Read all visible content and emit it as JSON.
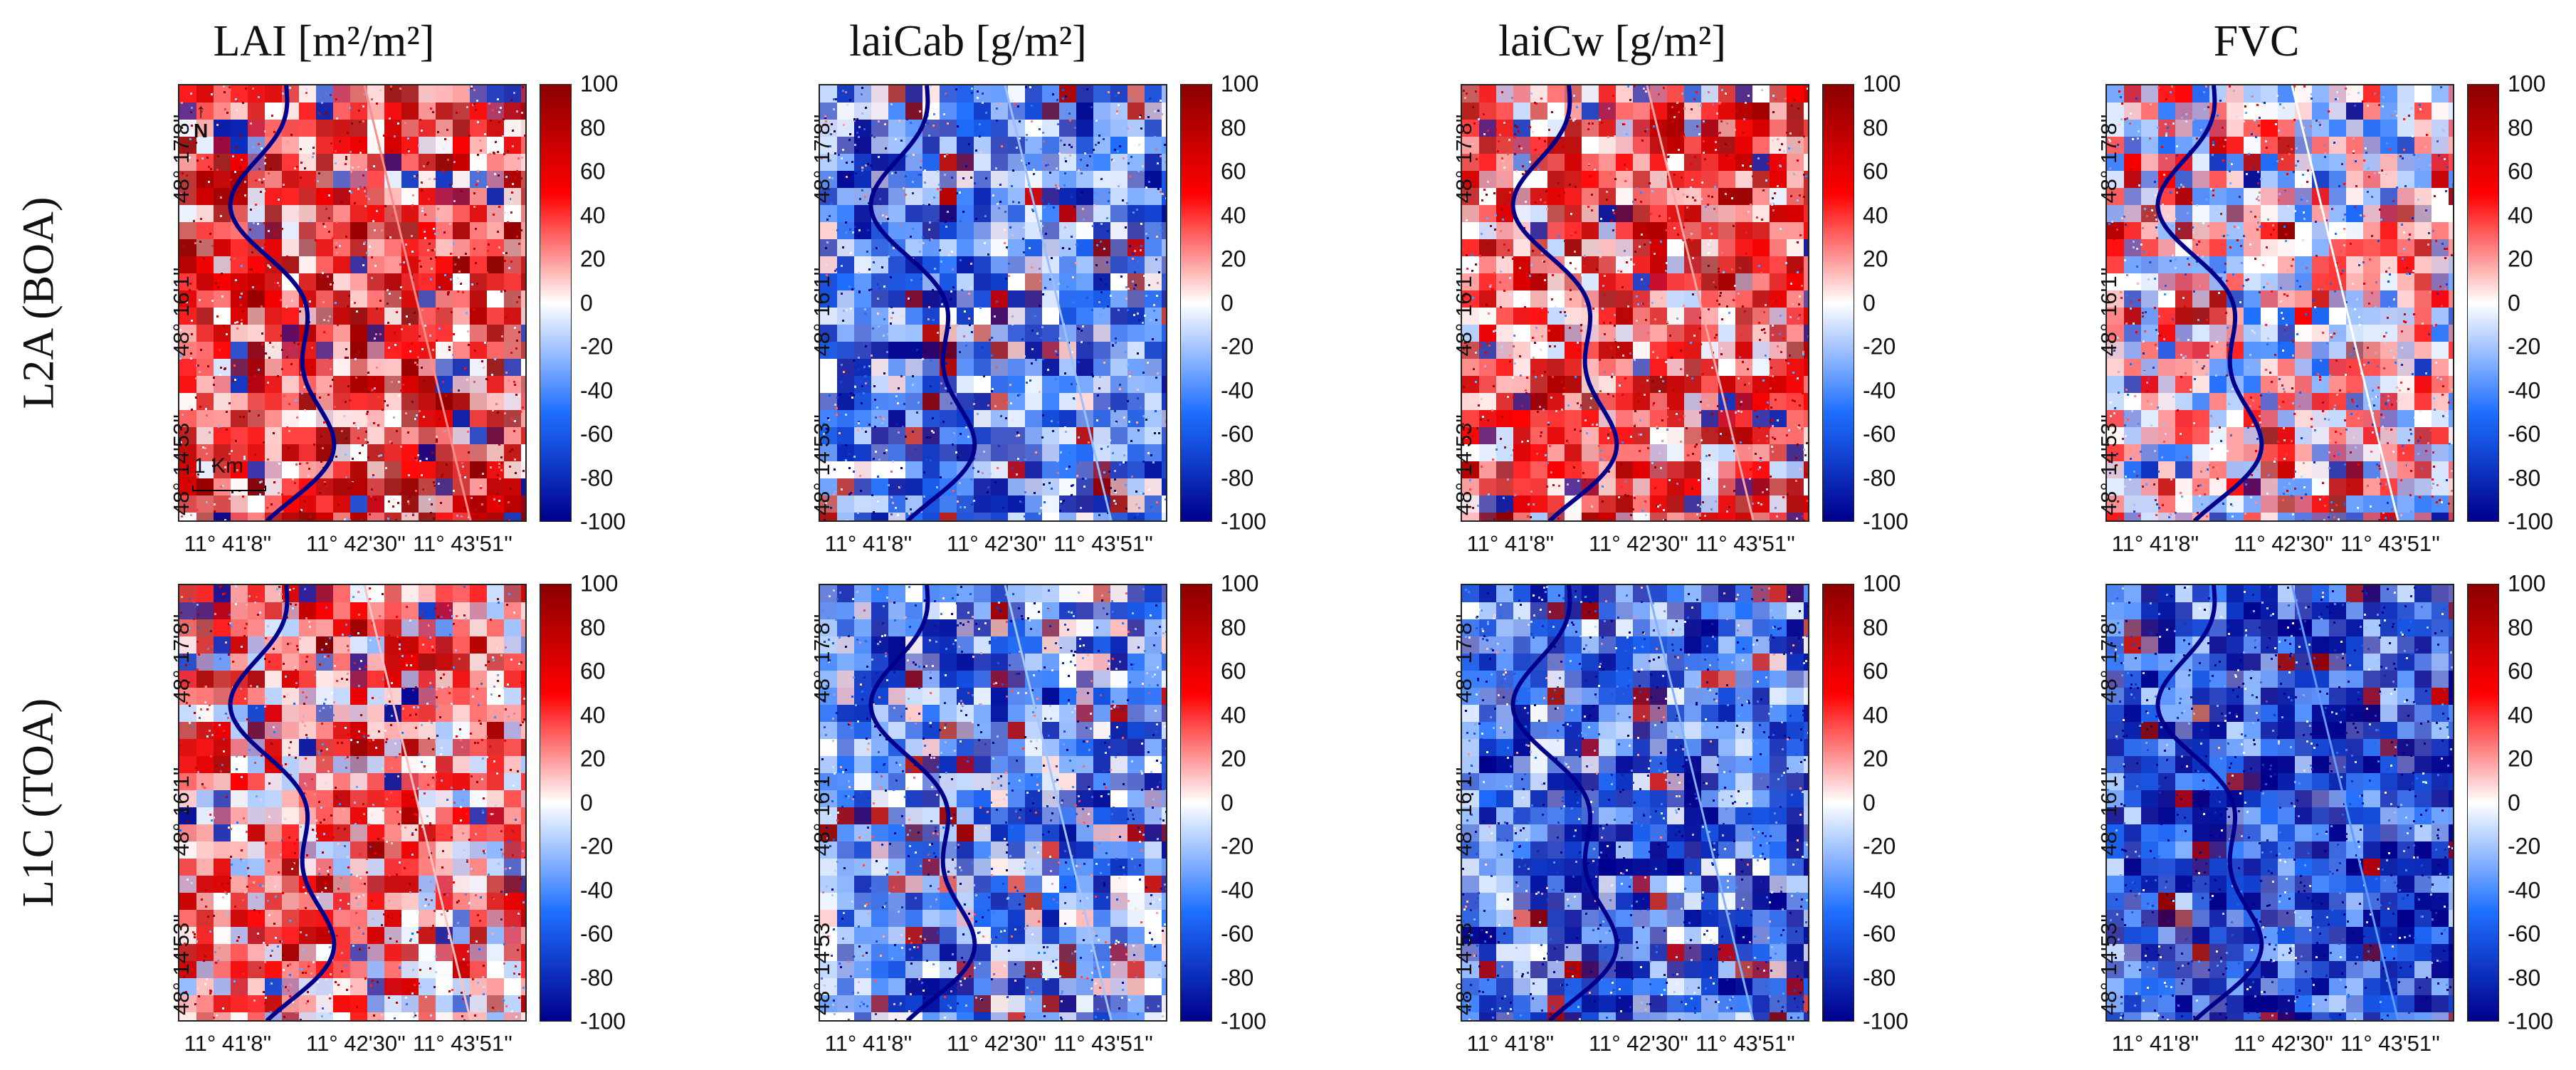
{
  "columns": [
    {
      "title": "LAI [m²/m²]"
    },
    {
      "title": "laiCab [g/m²]"
    },
    {
      "title": "laiCw [g/m²]"
    },
    {
      "title": "FVC"
    }
  ],
  "rows": [
    {
      "title": "L2A (BOA)"
    },
    {
      "title": "L1C (TOA)"
    }
  ],
  "axes": {
    "y_ticks": [
      "48° 17'8''",
      "48° 16'1''",
      "48° 14'53''"
    ],
    "x_ticks": [
      "11° 41'8''",
      "11° 42'30''",
      "11° 43'51''"
    ]
  },
  "colorbar": {
    "ticks": [
      "100",
      "80",
      "60",
      "40",
      "20",
      "0",
      "-20",
      "-40",
      "-60",
      "-80",
      "-100"
    ],
    "min": -100,
    "max": 100,
    "colors": {
      "low": "#00008b",
      "mid": "#ffffff",
      "high": "#8b0000",
      "red": "#ff0000",
      "blue": "#1e6fff"
    }
  },
  "map_annotations": {
    "north_label": "N",
    "scale_label": "1 Km"
  },
  "panel_bias": {
    "r0c0": 0.45,
    "r0c1": -0.45,
    "r0c2": 0.35,
    "r0c3": 0.0,
    "r1c0": 0.25,
    "r1c1": -0.4,
    "r1c2": -0.55,
    "r1c3": -0.7
  }
}
